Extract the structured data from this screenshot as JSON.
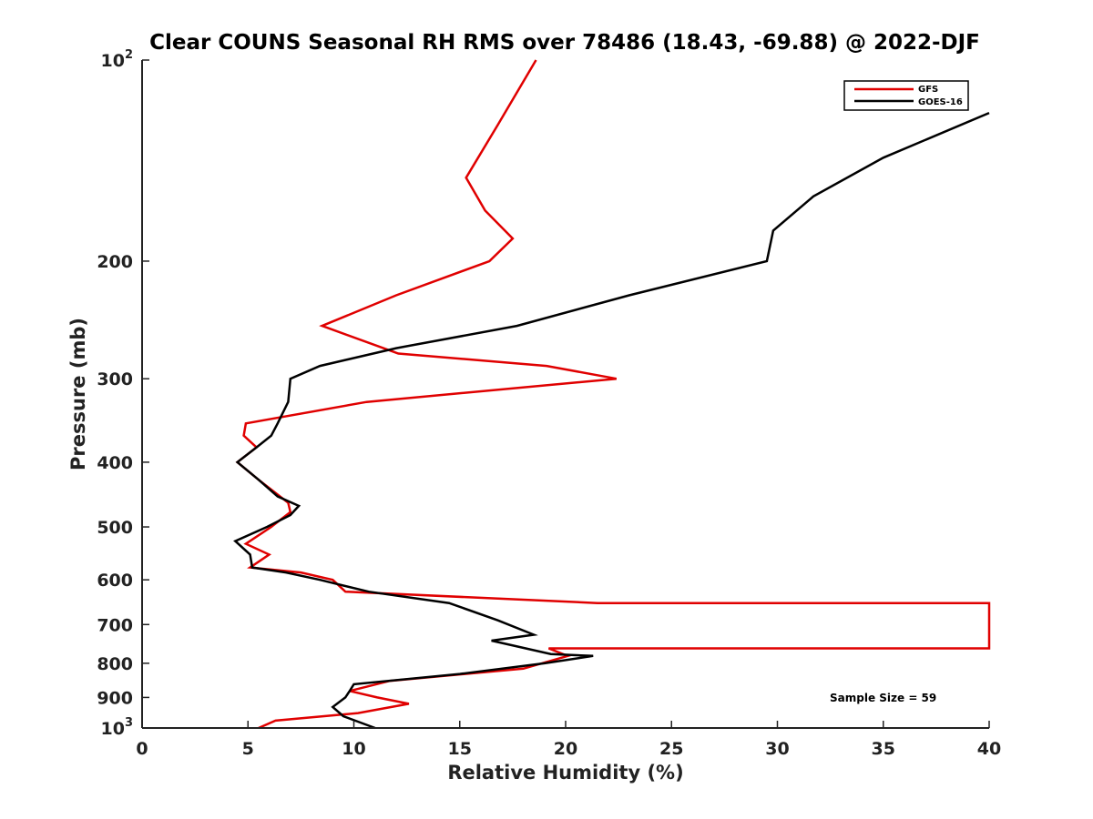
{
  "chart_data": {
    "type": "line",
    "title": "Clear COUNS Seasonal RH RMS over 78486 (18.43, -69.88) @ 2022-DJF",
    "xlabel": "Relative Humidity (%)",
    "ylabel": "Pressure (mb)",
    "xlim": [
      0,
      40
    ],
    "ylim": [
      100,
      1000
    ],
    "yscale": "log",
    "yreversed": true,
    "grid": false,
    "x_ticks": [
      0,
      5,
      10,
      15,
      20,
      25,
      30,
      35,
      40
    ],
    "x_tick_labels": [
      "0",
      "5",
      "10",
      "15",
      "20",
      "25",
      "30",
      "35",
      "40"
    ],
    "y_ticks": [
      100,
      200,
      300,
      400,
      500,
      600,
      700,
      800,
      900,
      1000
    ],
    "y_tick_labels": [
      {
        "base": "10",
        "exp": "2"
      },
      {
        "base": "200",
        "exp": ""
      },
      {
        "base": "300",
        "exp": ""
      },
      {
        "base": "400",
        "exp": ""
      },
      {
        "base": "500",
        "exp": ""
      },
      {
        "base": "600",
        "exp": ""
      },
      {
        "base": "700",
        "exp": ""
      },
      {
        "base": "800",
        "exp": ""
      },
      {
        "base": "900",
        "exp": ""
      },
      {
        "base": "10",
        "exp": "3"
      }
    ],
    "legend_position": "top-right",
    "annotation": "Sample Size = 59",
    "series": [
      {
        "name": "GFS",
        "color": "#e00000",
        "points": [
          [
            18.6,
            100
          ],
          [
            16.8,
            125
          ],
          [
            15.3,
            150
          ],
          [
            16.2,
            168
          ],
          [
            17.5,
            185
          ],
          [
            16.4,
            200
          ],
          [
            12.0,
            225
          ],
          [
            8.5,
            250
          ],
          [
            12.1,
            275
          ],
          [
            19.1,
            287
          ],
          [
            22.4,
            300
          ],
          [
            10.6,
            325
          ],
          [
            4.9,
            350
          ],
          [
            4.8,
            365
          ],
          [
            5.4,
            380
          ],
          [
            4.5,
            400
          ],
          [
            5.5,
            425
          ],
          [
            6.9,
            460
          ],
          [
            7.0,
            475
          ],
          [
            6.1,
            500
          ],
          [
            4.9,
            530
          ],
          [
            6.0,
            550
          ],
          [
            5.1,
            575
          ],
          [
            7.5,
            585
          ],
          [
            9.0,
            600
          ],
          [
            9.6,
            625
          ],
          [
            21.5,
            650
          ],
          [
            40.0,
            650
          ],
          [
            40.0,
            760
          ],
          [
            19.2,
            760
          ],
          [
            20.1,
            780
          ],
          [
            18.0,
            815
          ],
          [
            11.7,
            850
          ],
          [
            9.8,
            880
          ],
          [
            11.1,
            900
          ],
          [
            12.6,
            920
          ],
          [
            10.2,
            950
          ],
          [
            6.3,
            975
          ],
          [
            5.5,
            1000
          ]
        ]
      },
      {
        "name": "GOES-16",
        "color": "#000000",
        "points": [
          [
            40.0,
            120
          ],
          [
            35.0,
            140
          ],
          [
            31.7,
            160
          ],
          [
            29.8,
            180
          ],
          [
            29.5,
            200
          ],
          [
            23.0,
            225
          ],
          [
            17.7,
            250
          ],
          [
            12.0,
            270
          ],
          [
            8.4,
            287
          ],
          [
            7.0,
            300
          ],
          [
            6.9,
            325
          ],
          [
            6.4,
            350
          ],
          [
            6.1,
            365
          ],
          [
            5.4,
            380
          ],
          [
            4.5,
            400
          ],
          [
            5.5,
            425
          ],
          [
            6.4,
            450
          ],
          [
            7.4,
            465
          ],
          [
            7.0,
            480
          ],
          [
            5.9,
            500
          ],
          [
            4.4,
            525
          ],
          [
            5.1,
            550
          ],
          [
            5.2,
            575
          ],
          [
            6.8,
            585
          ],
          [
            8.4,
            600
          ],
          [
            10.7,
            625
          ],
          [
            14.5,
            650
          ],
          [
            16.8,
            690
          ],
          [
            18.5,
            725
          ],
          [
            16.5,
            740
          ],
          [
            19.3,
            775
          ],
          [
            21.3,
            780
          ],
          [
            19.0,
            800
          ],
          [
            15.0,
            830
          ],
          [
            10.0,
            860
          ],
          [
            9.8,
            880
          ],
          [
            9.6,
            900
          ],
          [
            9.0,
            930
          ],
          [
            9.5,
            960
          ],
          [
            11.0,
            1000
          ]
        ]
      }
    ]
  }
}
